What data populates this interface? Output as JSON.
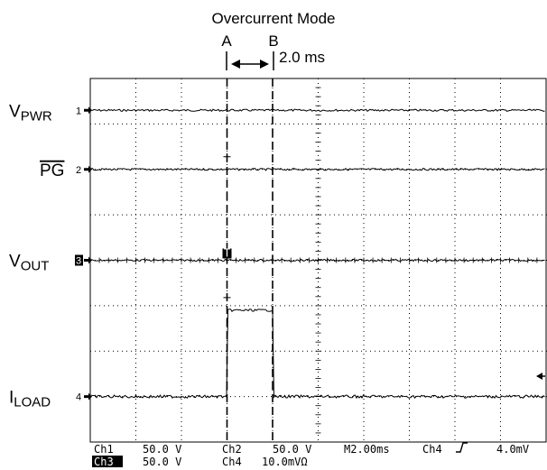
{
  "chart_data": {
    "type": "line",
    "title": "Overcurrent Mode",
    "cursors": {
      "a_label": "A",
      "b_label": "B",
      "delta": "2.0 ms"
    },
    "time_per_div_ms": 2.0,
    "divisions": {
      "x": 10,
      "y": 8
    },
    "cursor_positions_div": {
      "a": 3.0,
      "b": 4.0
    },
    "channels": [
      {
        "id": "1",
        "name_main": "V",
        "name_sub": "PWR",
        "marker": "1",
        "level_div": 7.3
      },
      {
        "id": "2",
        "name_main": "PG",
        "name_sub": "",
        "overline": true,
        "marker": "2",
        "level_div": 6.0
      },
      {
        "id": "3",
        "name_main": "V",
        "name_sub": "OUT",
        "marker": "3",
        "marker_inverted": true,
        "level_div": 4.0
      },
      {
        "id": "4",
        "name_main": "I",
        "name_sub": "LOAD",
        "marker": "4",
        "level_div": 1.0,
        "pulse": {
          "start_div": 3.0,
          "end_div": 4.0,
          "level_div": 2.9
        }
      }
    ],
    "trigger_marker_text": "T",
    "readout": {
      "row1": [
        "Ch1",
        "50.0 V",
        "Ch2",
        "50.0 V",
        "M2.00ms",
        "Ch4",
        "4.0mV"
      ],
      "row2": [
        "Ch3",
        "50.0 V",
        "Ch4",
        "10.0mVΩ"
      ]
    }
  }
}
